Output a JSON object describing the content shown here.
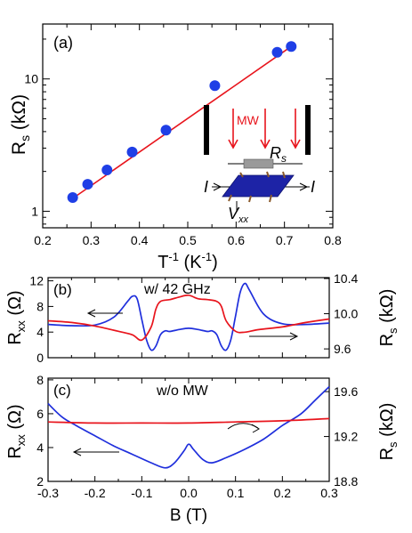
{
  "chart_data": [
    {
      "panel": "(a)",
      "type": "scatter",
      "xlabel": "T",
      "xlabel_sup": "-1",
      "xlabel_unit": "(K",
      "xlabel_unit_sup": "-1",
      "xlabel_close": ")",
      "ylabel": "R",
      "ylabel_sub": "s",
      "ylabel_unit": "(kΩ)",
      "xlim": [
        0.2,
        0.8
      ],
      "ylim": [
        0.75,
        26
      ],
      "yscale": "log",
      "xticks": [
        "0.2",
        "0.3",
        "0.4",
        "0.5",
        "0.6",
        "0.7",
        "0.8"
      ],
      "yticks": [
        "1",
        "10"
      ],
      "marker_color": "#1f3fe6",
      "fit_color": "#e8141c",
      "points": [
        {
          "x": 0.262,
          "y": 1.27
        },
        {
          "x": 0.293,
          "y": 1.6
        },
        {
          "x": 0.333,
          "y": 2.05
        },
        {
          "x": 0.385,
          "y": 2.8
        },
        {
          "x": 0.455,
          "y": 4.1
        },
        {
          "x": 0.556,
          "y": 8.9
        },
        {
          "x": 0.685,
          "y": 15.9
        },
        {
          "x": 0.714,
          "y": 17.6
        }
      ],
      "fit": {
        "x": [
          0.262,
          0.714
        ],
        "y": [
          1.25,
          17.6
        ]
      },
      "inset": {
        "mw_label": "MW",
        "rs_label": "R",
        "rs_sub": "s",
        "i_left": "I",
        "i_right": "I",
        "v_label": "V",
        "v_sub": "xx",
        "plate_color": "#1d23a6"
      }
    },
    {
      "panel": "(b)",
      "type": "line",
      "annotation": "w/ 42 GHz",
      "xlim": [
        -0.3,
        0.3
      ],
      "left_ylabel": "R",
      "left_ylabel_sub": "xx",
      "left_ylabel_unit": "(Ω)",
      "left_ylim": [
        0,
        12.5
      ],
      "left_yticks": [
        "0",
        "4",
        "8",
        "12"
      ],
      "right_ylabel": "R",
      "right_ylabel_sub": "s",
      "right_ylabel_unit": "(kΩ)",
      "right_ylim": [
        9.5,
        10.41
      ],
      "right_yticks": [
        "9.6",
        "10.0",
        "10.4"
      ],
      "series": [
        {
          "axis": "left",
          "color": "#1f2fdc",
          "x": [
            -0.3,
            -0.25,
            -0.2,
            -0.16,
            -0.13,
            -0.12,
            -0.11,
            -0.1,
            -0.09,
            -0.08,
            -0.07,
            -0.06,
            -0.05,
            -0.04,
            -0.02,
            0.0,
            0.02,
            0.04,
            0.05,
            0.06,
            0.07,
            0.08,
            0.09,
            0.1,
            0.11,
            0.12,
            0.13,
            0.16,
            0.2,
            0.25,
            0.3
          ],
          "y": [
            5.2,
            5.0,
            5.1,
            6.3,
            8.8,
            9.6,
            9.2,
            6.0,
            2.8,
            1.2,
            1.8,
            3.6,
            4.2,
            4.1,
            4.4,
            4.6,
            4.4,
            4.1,
            4.2,
            3.6,
            1.8,
            1.2,
            2.8,
            6.5,
            10.2,
            11.6,
            10.5,
            6.8,
            5.3,
            5.2,
            5.4
          ]
        },
        {
          "axis": "right",
          "color": "#e8141c",
          "x": [
            -0.3,
            -0.25,
            -0.2,
            -0.15,
            -0.12,
            -0.1,
            -0.08,
            -0.07,
            -0.06,
            -0.04,
            -0.02,
            0.0,
            0.02,
            0.04,
            0.06,
            0.07,
            0.08,
            0.1,
            0.12,
            0.15,
            0.2,
            0.25,
            0.3
          ],
          "y": [
            9.92,
            9.9,
            9.86,
            9.8,
            9.76,
            9.7,
            9.85,
            10.05,
            10.14,
            10.16,
            10.19,
            10.21,
            10.17,
            10.16,
            10.14,
            10.08,
            9.92,
            9.8,
            9.79,
            9.82,
            9.85,
            9.9,
            9.94
          ]
        }
      ]
    },
    {
      "panel": "(c)",
      "type": "line",
      "annotation": "w/o MW",
      "xlabel": "B (T)",
      "xlim": [
        -0.3,
        0.3
      ],
      "xticks": [
        "-0.3",
        "-0.2",
        "-0.1",
        "0.0",
        "0.1",
        "0.2",
        "0.3"
      ],
      "left_ylabel": "R",
      "left_ylabel_sub": "xx",
      "left_ylabel_unit": "(Ω)",
      "left_ylim": [
        2,
        8.1
      ],
      "left_yticks": [
        "2",
        "4",
        "6",
        "8"
      ],
      "right_ylabel": "R",
      "right_ylabel_sub": "s",
      "right_ylabel_unit": "(kΩ)",
      "right_ylim": [
        18.8,
        19.72
      ],
      "right_yticks": [
        "18.8",
        "19.2",
        "19.6"
      ],
      "series": [
        {
          "axis": "left",
          "color": "#1f2fdc",
          "x": [
            -0.3,
            -0.27,
            -0.24,
            -0.2,
            -0.16,
            -0.12,
            -0.08,
            -0.05,
            -0.03,
            -0.01,
            0.0,
            0.01,
            0.03,
            0.05,
            0.08,
            0.12,
            0.16,
            0.2,
            0.24,
            0.27,
            0.3
          ],
          "y": [
            6.6,
            5.8,
            5.3,
            4.7,
            4.1,
            3.6,
            3.1,
            2.8,
            3.1,
            3.8,
            4.2,
            3.9,
            3.3,
            3.1,
            3.4,
            3.9,
            4.5,
            5.3,
            6.0,
            6.8,
            7.6
          ]
        },
        {
          "axis": "right",
          "color": "#e8141c",
          "x": [
            -0.3,
            -0.2,
            -0.1,
            0.0,
            0.1,
            0.2,
            0.3
          ],
          "y": [
            19.33,
            19.32,
            19.32,
            19.32,
            19.33,
            19.34,
            19.36
          ]
        }
      ]
    }
  ]
}
